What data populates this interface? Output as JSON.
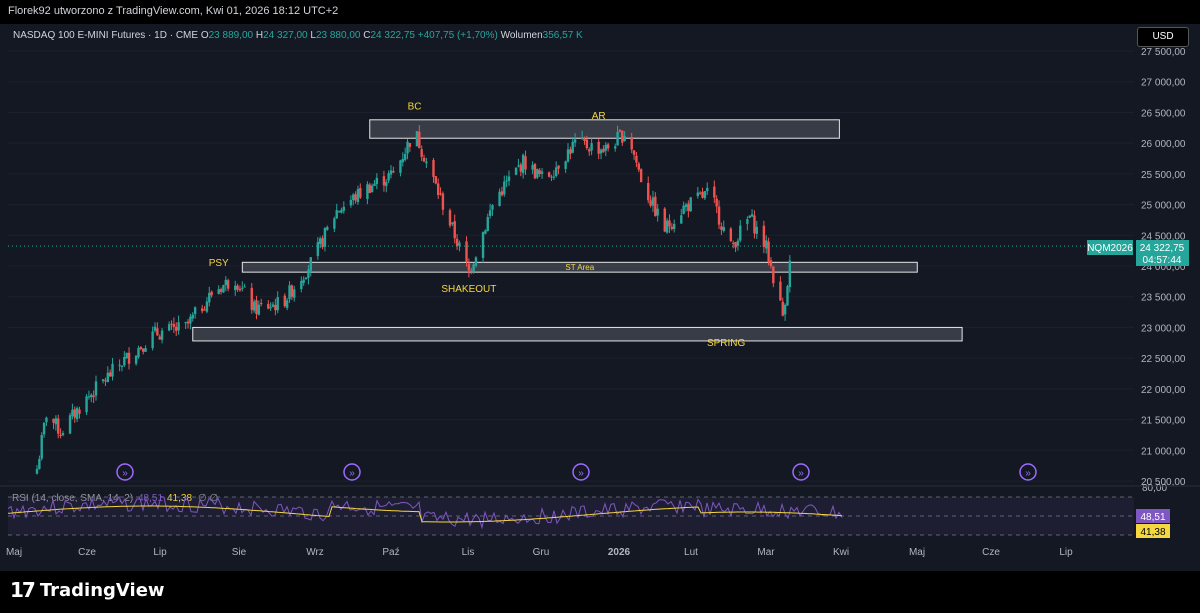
{
  "header": {
    "credit": "Florek92 utworzono z TradingView.com, Kwi 01, 2026 18:12 UTC+2"
  },
  "legend": {
    "symbol": "NASDAQ 100 E-MINI Futures · 1D · CME",
    "o_label": "O",
    "o_value": "23 889,00",
    "h_label": "H",
    "h_value": "24 327,00",
    "l_label": "L",
    "l_value": "23 880,00",
    "c_label": "C",
    "c_value": "24 322,75",
    "change": "+407,75 (+1,70%)",
    "volume_label": "Wolumen",
    "volume_value": "356,57 K"
  },
  "currency_button": "USD",
  "price_badge": {
    "ticker": "NQM2026",
    "price": "24 322,75",
    "countdown": "04:57:44"
  },
  "rsi": {
    "label": "RSI (14, close, SMA, 14, 2)",
    "legend_rsi": "48,51",
    "legend_sma": "41,38",
    "extra": "∅ ∅",
    "scale_top": "80,00",
    "current_rsi": "48,51",
    "current_sma": "41,38"
  },
  "footer": {
    "logo_text": "TradingView"
  },
  "colors": {
    "up": "#26a69a",
    "down": "#ef5350",
    "annotation": "#f5d73f",
    "rsi_line": "#7e57c2",
    "sma_line": "#f5d73f"
  },
  "chart_data": {
    "type": "candlestick",
    "title": "NASDAQ 100 E-MINI Futures · 1D · CME",
    "ylim": [
      20500,
      27500
    ],
    "y_ticks": [
      "20 500,00",
      "21 000,00",
      "21 500,00",
      "22 000,00",
      "22 500,00",
      "23 000,00",
      "23 500,00",
      "24 000,00",
      "24 500,00",
      "25 000,00",
      "25 500,00",
      "26 000,00",
      "26 500,00",
      "27 000,00",
      "27 500,00"
    ],
    "x_labels": [
      "Maj",
      "Cze",
      "Lip",
      "Sie",
      "Wrz",
      "Paź",
      "Lis",
      "Gru",
      "2026",
      "Lut",
      "Mar",
      "Kwi",
      "Maj",
      "Cze",
      "Lip"
    ],
    "price_path": [
      {
        "day": 0,
        "close": 20700
      },
      {
        "day": 4,
        "close": 21600
      },
      {
        "day": 10,
        "close": 21300
      },
      {
        "day": 20,
        "close": 21800
      },
      {
        "day": 35,
        "close": 22400
      },
      {
        "day": 50,
        "close": 22900
      },
      {
        "day": 63,
        "close": 23000
      },
      {
        "day": 75,
        "close": 23600
      },
      {
        "day": 84,
        "close": 23800
      },
      {
        "day": 92,
        "close": 23300
      },
      {
        "day": 104,
        "close": 23400
      },
      {
        "day": 117,
        "close": 24100
      },
      {
        "day": 127,
        "close": 24900
      },
      {
        "day": 141,
        "close": 25300
      },
      {
        "day": 151,
        "close": 25500
      },
      {
        "day": 160,
        "close": 26200
      },
      {
        "day": 167,
        "close": 25500
      },
      {
        "day": 176,
        "close": 24600
      },
      {
        "day": 183,
        "close": 23900
      },
      {
        "day": 194,
        "close": 25100
      },
      {
        "day": 206,
        "close": 25700
      },
      {
        "day": 215,
        "close": 25400
      },
      {
        "day": 228,
        "close": 26000
      },
      {
        "day": 241,
        "close": 25900
      },
      {
        "day": 250,
        "close": 26200
      },
      {
        "day": 257,
        "close": 25300
      },
      {
        "day": 266,
        "close": 24600
      },
      {
        "day": 274,
        "close": 24950
      },
      {
        "day": 285,
        "close": 25200
      },
      {
        "day": 294,
        "close": 24300
      },
      {
        "day": 302,
        "close": 24800
      },
      {
        "day": 309,
        "close": 24300
      },
      {
        "day": 316,
        "close": 23200
      },
      {
        "day": 320,
        "close": 24323
      }
    ],
    "zones": [
      {
        "label": "",
        "low": 26080,
        "high": 26380,
        "day_start": 141,
        "day_end": 340
      },
      {
        "label": "ST Area",
        "low": 23900,
        "high": 24060,
        "day_start": 87,
        "day_end": 373
      },
      {
        "label": "",
        "low": 22780,
        "high": 23000,
        "day_start": 66,
        "day_end": 392
      }
    ],
    "annotations": [
      {
        "text": "BC",
        "day": 160,
        "price": 26550
      },
      {
        "text": "AR",
        "day": 238,
        "price": 26390
      },
      {
        "text": "PSY",
        "day": 77,
        "price": 24000
      },
      {
        "text": "SHAKEOUT",
        "day": 183,
        "price": 23580
      },
      {
        "text": "SPRING",
        "day": 292,
        "price": 22700
      }
    ],
    "last_price": 24322.75,
    "rsi_ylim": [
      20,
      80
    ]
  }
}
